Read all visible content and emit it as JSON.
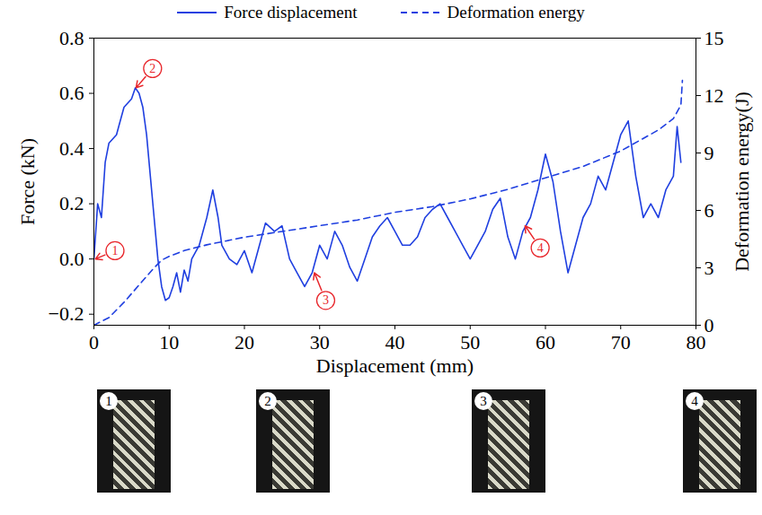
{
  "chart_data": {
    "type": "line",
    "xlabel": "Displacement (mm)",
    "ylabel": "Force (kN)",
    "y2label": "Deformation energy(J)",
    "xlim": [
      0,
      80
    ],
    "xticks": [
      0,
      10,
      20,
      30,
      40,
      50,
      60,
      70,
      80
    ],
    "ylim": [
      -0.24,
      0.8
    ],
    "yticks": [
      {
        "value": -0.2,
        "label": "−0.2"
      },
      {
        "value": 0,
        "label": "0.0"
      },
      0.2,
      0.4,
      0.6,
      0.8
    ],
    "y2lim": [
      0,
      15
    ],
    "y2ticks": [
      0,
      3,
      6,
      9,
      12,
      15
    ],
    "grid": false,
    "legend": "top",
    "series": [
      {
        "name": "Force displacement",
        "color": "#1f3fe0",
        "line_style": "solid",
        "x": [
          0,
          0.5,
          1,
          1.5,
          2,
          3,
          3.5,
          4,
          5,
          5.5,
          6,
          6.5,
          7,
          7.5,
          8,
          8.5,
          9,
          9.5,
          10,
          10.5,
          11,
          11.5,
          12,
          12.5,
          13,
          14,
          15,
          15.8,
          16.5,
          17,
          18,
          19,
          20,
          21,
          22,
          22.8,
          24,
          25,
          26,
          27,
          28,
          29,
          30,
          31,
          32,
          33,
          34,
          35,
          36,
          37,
          38,
          39,
          40,
          41,
          42,
          43,
          44,
          45,
          46,
          47,
          48,
          49,
          50,
          51,
          52,
          53,
          54,
          55,
          56,
          57,
          58,
          59,
          60,
          61,
          62,
          63,
          64,
          65,
          66,
          67,
          68,
          69,
          70,
          71,
          72,
          73,
          74,
          75,
          76,
          77,
          77.5,
          78
        ],
        "values": [
          0,
          0.2,
          0.15,
          0.35,
          0.42,
          0.45,
          0.5,
          0.55,
          0.58,
          0.62,
          0.6,
          0.55,
          0.45,
          0.3,
          0.15,
          0,
          -0.1,
          -0.15,
          -0.14,
          -0.1,
          -0.05,
          -0.12,
          -0.04,
          -0.08,
          0,
          0.05,
          0.15,
          0.25,
          0.15,
          0.05,
          0,
          -0.02,
          0.03,
          -0.05,
          0.05,
          0.13,
          0.1,
          0.12,
          0,
          -0.05,
          -0.1,
          -0.05,
          0.05,
          0,
          0.1,
          0.05,
          -0.03,
          -0.08,
          0,
          0.08,
          0.12,
          0.15,
          0.1,
          0.05,
          0.05,
          0.08,
          0.15,
          0.18,
          0.2,
          0.15,
          0.1,
          0.05,
          0,
          0.05,
          0.1,
          0.18,
          0.22,
          0.08,
          0,
          0.1,
          0.15,
          0.25,
          0.38,
          0.28,
          0.1,
          -0.05,
          0.05,
          0.15,
          0.2,
          0.3,
          0.25,
          0.35,
          0.45,
          0.5,
          0.3,
          0.15,
          0.2,
          0.15,
          0.25,
          0.3,
          0.48,
          0.35
        ]
      },
      {
        "name": "Deformation energy",
        "color": "#1f3fe0",
        "line_style": "dashed",
        "axis": "y2",
        "x": [
          0,
          2,
          4,
          6,
          8,
          9,
          10,
          12,
          15,
          20,
          25,
          30,
          35,
          40,
          45,
          50,
          55,
          60,
          65,
          70,
          75,
          77,
          78,
          78.2
        ],
        "values": [
          0,
          0.4,
          1.2,
          2.1,
          3,
          3.4,
          3.6,
          3.9,
          4.2,
          4.6,
          4.9,
          5.2,
          5.5,
          5.9,
          6.2,
          6.6,
          7.1,
          7.7,
          8.3,
          9.1,
          10.2,
          10.8,
          11.5,
          12.8
        ]
      }
    ],
    "annotations": [
      {
        "text": "1",
        "x": 0.2,
        "y": 0,
        "text_x": 2.8,
        "text_y": 0.03,
        "color": "#e8262b"
      },
      {
        "text": "2",
        "x": 5.6,
        "y": 0.62,
        "text_x": 7.8,
        "text_y": 0.69,
        "color": "#e8262b"
      },
      {
        "text": "3",
        "x": 29.3,
        "y": -0.05,
        "text_x": 30.8,
        "text_y": -0.15,
        "color": "#e8262b"
      },
      {
        "text": "4",
        "x": 57.3,
        "y": 0.12,
        "text_x": 59.3,
        "text_y": 0.04,
        "color": "#e8262b"
      }
    ],
    "images": [
      {
        "label": "1"
      },
      {
        "label": "2"
      },
      {
        "label": "3"
      },
      {
        "label": "4"
      }
    ]
  }
}
